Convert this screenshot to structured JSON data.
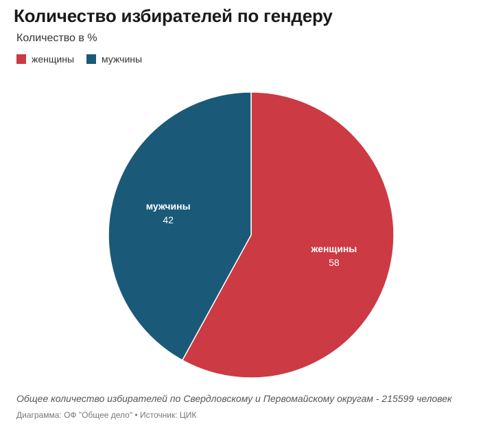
{
  "chart_data": {
    "type": "pie",
    "title": "Количество избирателей по гендеру",
    "subtitle": "Количество в %",
    "categories": [
      "женщины",
      "мужчины"
    ],
    "values": [
      58,
      42
    ],
    "colors": [
      "#cc3a43",
      "#1a5a78"
    ],
    "legend_position": "top-left",
    "footnote": "Общее количество избирателей по Свердловскому и Первомайскому округам - 215599 человек",
    "credits": "Диаграмма: ОФ \"Общее дело\" • Источник: ЦИК"
  }
}
